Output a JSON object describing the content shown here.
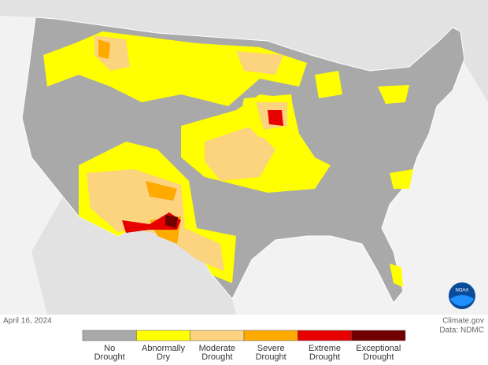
{
  "map": {
    "date": "April 16, 2024",
    "source": "Climate.gov",
    "data_credit": "Data: NDMC",
    "logo_text": "NOAA",
    "legend": [
      {
        "lines": [
          "No",
          "Drought"
        ],
        "color": "#a9a9a9"
      },
      {
        "lines": [
          "Abnormally",
          "Dry"
        ],
        "color": "#ffff00"
      },
      {
        "lines": [
          "Moderate",
          "Drought"
        ],
        "color": "#fcd37f"
      },
      {
        "lines": [
          "Severe",
          "Drought"
        ],
        "color": "#ffaa00"
      },
      {
        "lines": [
          "Extreme",
          "Drought"
        ],
        "color": "#e60000"
      },
      {
        "lines": [
          "Exceptional",
          "Drought"
        ],
        "color": "#730000"
      }
    ]
  }
}
